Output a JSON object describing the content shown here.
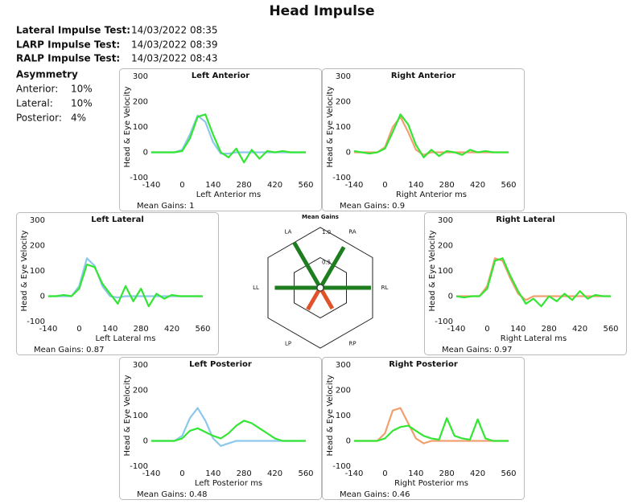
{
  "header": {
    "title": "Head Impulse",
    "tests": [
      {
        "label": "Lateral Impulse Test:",
        "value": "14/03/2022 08:35"
      },
      {
        "label": "LARP Impulse Test:",
        "value": "14/03/2022 08:39"
      },
      {
        "label": "RALP Impulse Test:",
        "value": "14/03/2022 08:43"
      }
    ],
    "asymmetry": {
      "title": "Asymmetry",
      "rows": [
        {
          "label": "Anterior:",
          "value": "10%"
        },
        {
          "label": "Lateral:",
          "value": "10%"
        },
        {
          "label": "Posterior:",
          "value": "4%"
        }
      ]
    }
  },
  "chart_data": [
    {
      "type": "line",
      "title": "Left Anterior",
      "xlabel": "Left Anterior ms",
      "ylabel": "Head & Eye Velocity",
      "footer": "Mean Gains: 1",
      "x": [
        -140,
        -105,
        -70,
        -35,
        0,
        35,
        70,
        105,
        140,
        175,
        210,
        245,
        280,
        315,
        350,
        385,
        420,
        455,
        490,
        525,
        560
      ],
      "series": [
        {
          "color": "#8cc8ec",
          "values": [
            0,
            0,
            0,
            0,
            10,
            70,
            145,
            120,
            40,
            -5,
            -5,
            0,
            0,
            0,
            0,
            0,
            0,
            0,
            0,
            0,
            0
          ]
        },
        {
          "color": "#33e633",
          "values": [
            0,
            0,
            0,
            0,
            5,
            55,
            140,
            150,
            70,
            0,
            -20,
            15,
            -40,
            10,
            -25,
            5,
            0,
            5,
            0,
            0,
            0
          ]
        }
      ],
      "xlim": [
        -140,
        560
      ],
      "ylim": [
        -100,
        300
      ],
      "xticks": [
        -140,
        0,
        140,
        280,
        420,
        560
      ],
      "yticks": [
        -100,
        0,
        100,
        200,
        300
      ]
    },
    {
      "type": "line",
      "title": "Right Anterior",
      "xlabel": "Right Anterior ms",
      "ylabel": "Head & Eye Velocity",
      "footer": "Mean Gains: 0.9",
      "x": [
        -140,
        -105,
        -70,
        -35,
        0,
        35,
        70,
        105,
        140,
        175,
        210,
        245,
        280,
        315,
        350,
        385,
        420,
        455,
        490,
        525,
        560
      ],
      "series": [
        {
          "color": "#f0a070",
          "values": [
            0,
            0,
            0,
            0,
            20,
            100,
            140,
            80,
            10,
            -10,
            0,
            0,
            0,
            0,
            0,
            0,
            0,
            0,
            0,
            0,
            0
          ]
        },
        {
          "color": "#33e633",
          "values": [
            5,
            0,
            -5,
            0,
            15,
            80,
            150,
            110,
            30,
            -20,
            10,
            -15,
            5,
            0,
            -10,
            10,
            0,
            5,
            0,
            0,
            0
          ]
        }
      ],
      "xlim": [
        -140,
        560
      ],
      "ylim": [
        -100,
        300
      ],
      "xticks": [
        -140,
        0,
        140,
        280,
        420,
        560
      ],
      "yticks": [
        -100,
        0,
        100,
        200,
        300
      ]
    },
    {
      "type": "line",
      "title": "Left Lateral",
      "xlabel": "Left Lateral ms",
      "ylabel": "Head & Eye Velocity",
      "footer": "Mean Gains: 0.87",
      "x": [
        -140,
        -105,
        -70,
        -35,
        0,
        35,
        70,
        105,
        140,
        175,
        210,
        245,
        280,
        315,
        350,
        385,
        420,
        455,
        490,
        525,
        560
      ],
      "series": [
        {
          "color": "#8cc8ec",
          "values": [
            0,
            0,
            0,
            0,
            40,
            150,
            120,
            40,
            0,
            -5,
            0,
            0,
            0,
            0,
            0,
            0,
            0,
            0,
            0,
            0,
            0
          ]
        },
        {
          "color": "#33e633",
          "values": [
            0,
            0,
            5,
            0,
            30,
            125,
            115,
            50,
            10,
            -30,
            40,
            -20,
            30,
            -40,
            10,
            -10,
            5,
            0,
            0,
            0,
            0
          ]
        }
      ],
      "xlim": [
        -140,
        560
      ],
      "ylim": [
        -100,
        300
      ],
      "xticks": [
        -140,
        0,
        140,
        280,
        420,
        560
      ],
      "yticks": [
        -100,
        0,
        100,
        200,
        300
      ]
    },
    {
      "type": "line",
      "title": "Right Lateral",
      "xlabel": "Right Lateral ms",
      "ylabel": "Head & Eye Velocity",
      "footer": "Mean Gains: 0.97",
      "x": [
        -140,
        -105,
        -70,
        -35,
        0,
        35,
        70,
        105,
        140,
        175,
        210,
        245,
        280,
        315,
        350,
        385,
        420,
        455,
        490,
        525,
        560
      ],
      "series": [
        {
          "color": "#f0a070",
          "values": [
            0,
            0,
            0,
            0,
            40,
            150,
            140,
            70,
            10,
            -15,
            0,
            0,
            0,
            0,
            0,
            0,
            0,
            0,
            0,
            0,
            0
          ]
        },
        {
          "color": "#33e633",
          "values": [
            0,
            -5,
            0,
            0,
            30,
            140,
            150,
            80,
            20,
            -30,
            -10,
            -40,
            0,
            -20,
            10,
            -15,
            20,
            -10,
            5,
            0,
            0
          ]
        }
      ],
      "xlim": [
        -140,
        560
      ],
      "ylim": [
        -100,
        300
      ],
      "xticks": [
        -140,
        0,
        140,
        280,
        420,
        560
      ],
      "yticks": [
        -100,
        0,
        100,
        200,
        300
      ]
    },
    {
      "type": "line",
      "title": "Left Posterior",
      "xlabel": "Left Posterior ms",
      "ylabel": "Head & Eye Velocity",
      "footer": "Mean Gains: 0.48",
      "x": [
        -140,
        -105,
        -70,
        -35,
        0,
        35,
        70,
        105,
        140,
        175,
        210,
        245,
        280,
        315,
        350,
        385,
        420,
        455,
        490,
        525,
        560
      ],
      "series": [
        {
          "color": "#8cc8ec",
          "values": [
            0,
            0,
            0,
            0,
            20,
            90,
            130,
            80,
            10,
            -20,
            -10,
            0,
            0,
            0,
            0,
            0,
            0,
            0,
            0,
            0,
            0
          ]
        },
        {
          "color": "#33e633",
          "values": [
            0,
            0,
            0,
            0,
            10,
            40,
            50,
            35,
            20,
            10,
            30,
            60,
            80,
            70,
            50,
            30,
            10,
            0,
            0,
            0,
            0
          ]
        }
      ],
      "xlim": [
        -140,
        560
      ],
      "ylim": [
        -100,
        300
      ],
      "xticks": [
        -140,
        0,
        140,
        280,
        420,
        560
      ],
      "yticks": [
        -100,
        0,
        100,
        200,
        300
      ]
    },
    {
      "type": "line",
      "title": "Right Posterior",
      "xlabel": "Right Posterior ms",
      "ylabel": "Head & Eye Velocity",
      "footer": "Mean Gains: 0.46",
      "x": [
        -140,
        -105,
        -70,
        -35,
        0,
        35,
        70,
        105,
        140,
        175,
        210,
        245,
        280,
        315,
        350,
        385,
        420,
        455,
        490,
        525,
        560
      ],
      "series": [
        {
          "color": "#f0a070",
          "values": [
            0,
            0,
            0,
            0,
            30,
            120,
            130,
            70,
            10,
            -10,
            0,
            0,
            0,
            0,
            0,
            0,
            0,
            0,
            0,
            0,
            0
          ]
        },
        {
          "color": "#33e633",
          "values": [
            0,
            0,
            0,
            0,
            10,
            40,
            55,
            60,
            40,
            20,
            10,
            5,
            90,
            20,
            10,
            5,
            85,
            10,
            0,
            0,
            0
          ]
        }
      ],
      "xlim": [
        -140,
        560
      ],
      "ylim": [
        -100,
        300
      ],
      "xticks": [
        -140,
        0,
        140,
        280,
        420,
        560
      ],
      "yticks": [
        -100,
        0,
        100,
        200,
        300
      ]
    },
    {
      "type": "radar",
      "title": "Mean Gains",
      "categories": [
        "LA",
        "RA",
        "RL",
        "RP",
        "LP",
        "LL"
      ],
      "values": [
        1,
        0.9,
        0.97,
        0.46,
        0.48,
        0.87
      ],
      "colors": [
        "#1e7d1e",
        "#1e7d1e",
        "#1e7d1e",
        "#e0522a",
        "#e0522a",
        "#1e7d1e"
      ],
      "rlim": [
        0,
        1
      ],
      "rticks": [
        0.5,
        {
          "value": 1,
          "label": "1.0"
        }
      ]
    }
  ]
}
